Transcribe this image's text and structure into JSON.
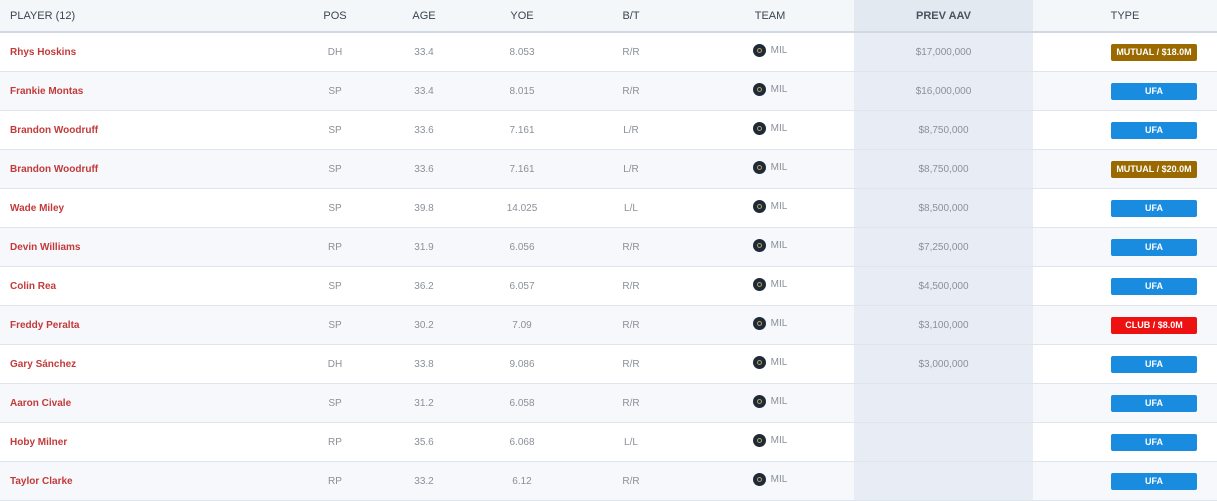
{
  "headers": [
    "PLAYER (12)",
    "POS",
    "AGE",
    "YOE",
    "B/T",
    "TEAM",
    "PREV AAV",
    "TYPE"
  ],
  "colors": {
    "MUTUAL": "#9a6a00",
    "UFA": "#1a8ce0",
    "CLUB": "#ee1111"
  },
  "rows": [
    {
      "player": "Rhys Hoskins",
      "pos": "DH",
      "age": "33.4",
      "yoe": "8.053",
      "bt": "R/R",
      "team": "MIL",
      "aav": "$17,000,000",
      "type": "MUTUAL / $18.0M",
      "kind": "MUTUAL"
    },
    {
      "player": "Frankie Montas",
      "pos": "SP",
      "age": "33.4",
      "yoe": "8.015",
      "bt": "R/R",
      "team": "MIL",
      "aav": "$16,000,000",
      "type": "UFA",
      "kind": "UFA"
    },
    {
      "player": "Brandon Woodruff",
      "pos": "SP",
      "age": "33.6",
      "yoe": "7.161",
      "bt": "L/R",
      "team": "MIL",
      "aav": "$8,750,000",
      "type": "UFA",
      "kind": "UFA"
    },
    {
      "player": "Brandon Woodruff",
      "pos": "SP",
      "age": "33.6",
      "yoe": "7.161",
      "bt": "L/R",
      "team": "MIL",
      "aav": "$8,750,000",
      "type": "MUTUAL / $20.0M",
      "kind": "MUTUAL"
    },
    {
      "player": "Wade Miley",
      "pos": "SP",
      "age": "39.8",
      "yoe": "14.025",
      "bt": "L/L",
      "team": "MIL",
      "aav": "$8,500,000",
      "type": "UFA",
      "kind": "UFA"
    },
    {
      "player": "Devin Williams",
      "pos": "RP",
      "age": "31.9",
      "yoe": "6.056",
      "bt": "R/R",
      "team": "MIL",
      "aav": "$7,250,000",
      "type": "UFA",
      "kind": "UFA"
    },
    {
      "player": "Colin Rea",
      "pos": "SP",
      "age": "36.2",
      "yoe": "6.057",
      "bt": "R/R",
      "team": "MIL",
      "aav": "$4,500,000",
      "type": "UFA",
      "kind": "UFA"
    },
    {
      "player": "Freddy Peralta",
      "pos": "SP",
      "age": "30.2",
      "yoe": "7.09",
      "bt": "R/R",
      "team": "MIL",
      "aav": "$3,100,000",
      "type": "CLUB / $8.0M",
      "kind": "CLUB"
    },
    {
      "player": "Gary Sánchez",
      "pos": "DH",
      "age": "33.8",
      "yoe": "9.086",
      "bt": "R/R",
      "team": "MIL",
      "aav": "$3,000,000",
      "type": "UFA",
      "kind": "UFA"
    },
    {
      "player": "Aaron Civale",
      "pos": "SP",
      "age": "31.2",
      "yoe": "6.058",
      "bt": "R/R",
      "team": "MIL",
      "aav": "",
      "type": "UFA",
      "kind": "UFA"
    },
    {
      "player": "Hoby Milner",
      "pos": "RP",
      "age": "35.6",
      "yoe": "6.068",
      "bt": "L/L",
      "team": "MIL",
      "aav": "",
      "type": "UFA",
      "kind": "UFA"
    },
    {
      "player": "Taylor Clarke",
      "pos": "RP",
      "age": "33.2",
      "yoe": "6.12",
      "bt": "R/R",
      "team": "MIL",
      "aav": "",
      "type": "UFA",
      "kind": "UFA"
    }
  ]
}
